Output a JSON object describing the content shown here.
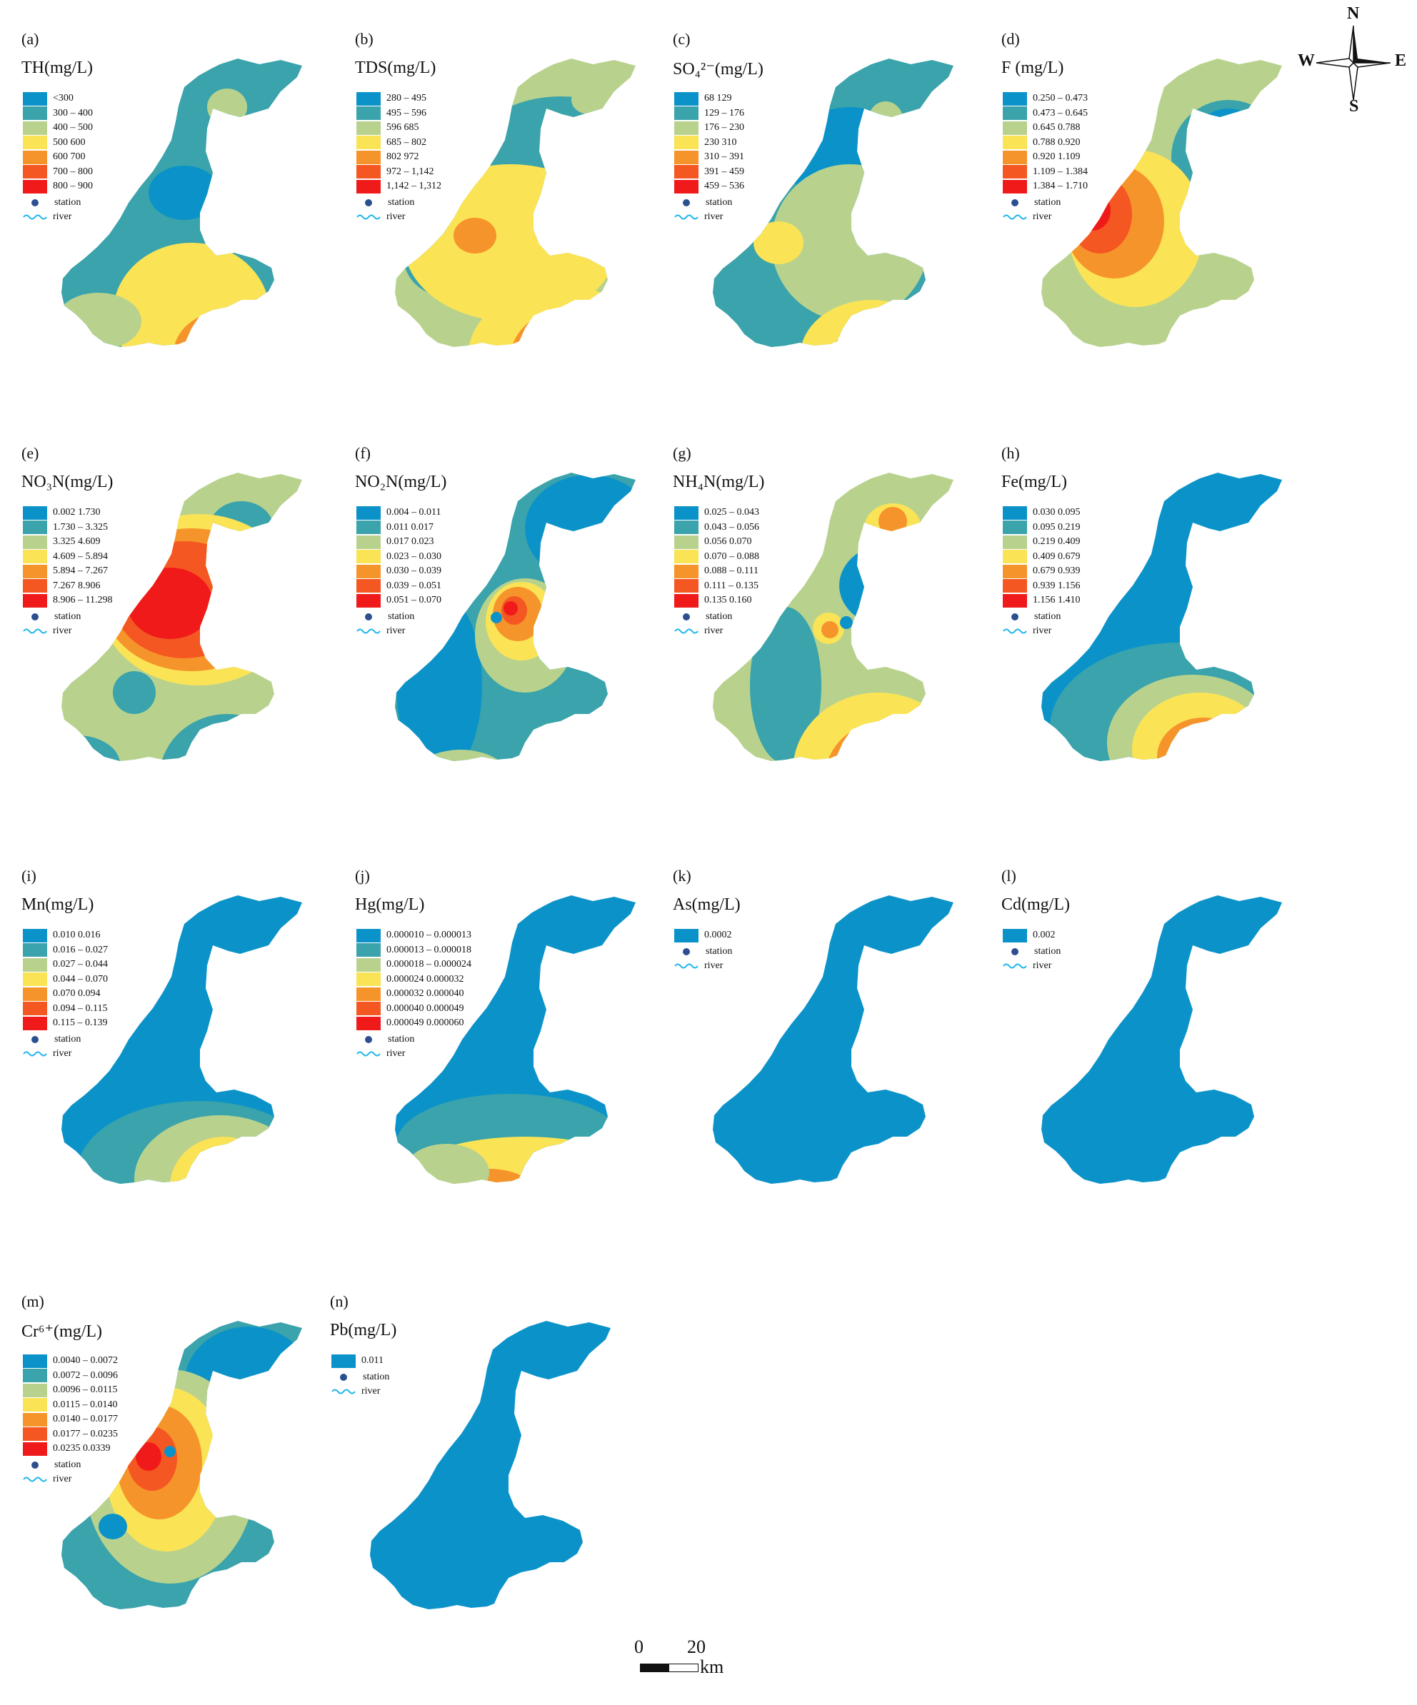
{
  "colors": {
    "c1": "#0b93c9",
    "c2": "#3aa3ab",
    "c3": "#b8d28e",
    "c4": "#fbe356",
    "c5": "#f6942c",
    "c6": "#f45722",
    "c7": "#f01a1a",
    "station": "#2c4f8f",
    "river": "#1fb6ea"
  },
  "common": {
    "station_label": "station",
    "river_label": "river"
  },
  "compass": {
    "n": "N",
    "s": "S",
    "e": "E",
    "w": "W"
  },
  "scalebar": {
    "zero": "0",
    "twenty": "20",
    "unit": "km"
  },
  "panels": [
    {
      "id": "a",
      "label": "(a)",
      "title": "TH(mg/L)",
      "legend": [
        "<300",
        "300 – 400",
        "400 – 500",
        "500   600",
        "600   700",
        "700 – 800",
        "800 – 900"
      ]
    },
    {
      "id": "b",
      "label": "(b)",
      "title": "TDS(mg/L)",
      "legend": [
        "280 – 495",
        "495 – 596",
        "596   685",
        "685 – 802",
        "802   972",
        "972 – 1,142",
        "1,142 – 1,312"
      ]
    },
    {
      "id": "c",
      "label": "(c)",
      "title": "SO₄²⁻(mg/L)",
      "legend": [
        "68   129",
        "129 – 176",
        "176 – 230",
        "230   310",
        "310 – 391",
        "391 – 459",
        "459 – 536"
      ]
    },
    {
      "id": "d",
      "label": "(d)",
      "title": "F (mg/L)",
      "legend": [
        "0.250 – 0.473",
        "0.473 – 0.645",
        "0.645   0.788",
        "0.788   0.920",
        "0.920   1.109",
        "1.109 – 1.384",
        "1.384 – 1.710"
      ]
    },
    {
      "id": "e",
      "label": "(e)",
      "title": "NO₃N(mg/L)",
      "legend": [
        "0.002   1.730",
        "1.730 – 3.325",
        "3.325   4.609",
        "4.609 – 5.894",
        "5.894 – 7.267",
        "7.267   8.906",
        "8.906 – 11.298"
      ]
    },
    {
      "id": "f",
      "label": "(f)",
      "title": "NO₂N(mg/L)",
      "legend": [
        "0.004 – 0.011",
        "0.011   0.017",
        "0.017   0.023",
        "0.023 – 0.030",
        "0.030 – 0.039",
        "0.039 – 0.051",
        "0.051 – 0.070"
      ]
    },
    {
      "id": "g",
      "label": "(g)",
      "title": "NH₄N(mg/L)",
      "legend": [
        "0.025 – 0.043",
        "0.043 – 0.056",
        "0.056   0.070",
        "0.070 – 0.088",
        "0.088 – 0.111",
        "0.111 – 0.135",
        "0.135   0.160"
      ]
    },
    {
      "id": "h",
      "label": "(h)",
      "title": "Fe(mg/L)",
      "legend": [
        "0.030   0.095",
        "0.095   0.219",
        "0.219   0.409",
        "0.409   0.679",
        "0.679   0.939",
        "0.939   1.156",
        "1.156   1.410"
      ]
    },
    {
      "id": "i",
      "label": "(i)",
      "title": "Mn(mg/L)",
      "legend": [
        "0.010   0.016",
        "0.016 – 0.027",
        "0.027 – 0.044",
        "0.044 – 0.070",
        "0.070   0.094",
        "0.094 – 0.115",
        "0.115 – 0.139"
      ]
    },
    {
      "id": "j",
      "label": "(j)",
      "title": "Hg(mg/L)",
      "legend": [
        "0.000010 – 0.000013",
        "0.000013 – 0.000018",
        "0.000018 – 0.000024",
        "0.000024   0.000032",
        "0.000032   0.000040",
        "0.000040   0.000049",
        "0.000049   0.000060"
      ]
    },
    {
      "id": "k",
      "label": "(k)",
      "title": "As(mg/L)",
      "legend": [
        "0.0002"
      ]
    },
    {
      "id": "l",
      "label": "(l)",
      "title": "Cd(mg/L)",
      "legend": [
        "0.002"
      ]
    },
    {
      "id": "m",
      "label": "(m)",
      "title": "Cr⁶⁺(mg/L)",
      "legend": [
        "0.0040 – 0.0072",
        "0.0072 – 0.0096",
        "0.0096 – 0.0115",
        "0.0115 – 0.0140",
        "0.0140 – 0.0177",
        "0.0177 – 0.0235",
        "0.0235   0.0339"
      ]
    },
    {
      "id": "n",
      "label": "(n)",
      "title": "Pb(mg/L)",
      "legend": [
        "0.011"
      ]
    }
  ]
}
